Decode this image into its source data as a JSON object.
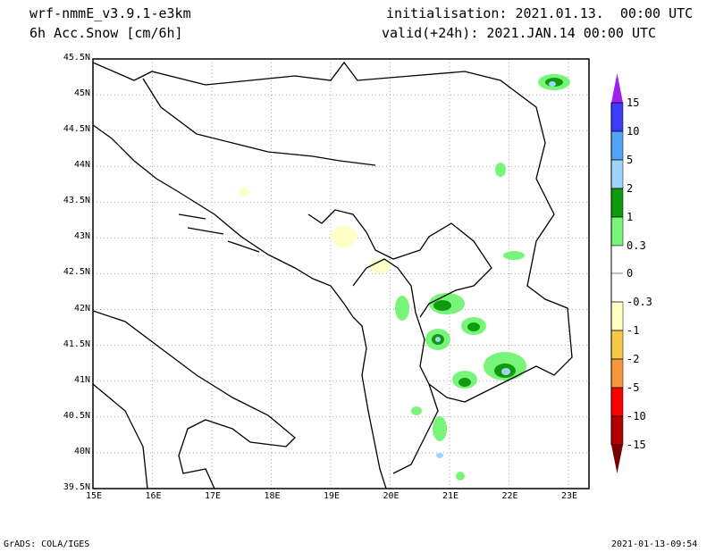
{
  "header": {
    "model": "wrf-nmmE_v3.9.1-e3km",
    "field": "6h Acc.Snow [cm/6h]",
    "init": "initialisation: 2021.01.13.  00:00 UTC",
    "valid": "valid(+24h): 2021.JAN.14 00:00 UTC"
  },
  "footer": {
    "left": "GrADS: COLA/IGES",
    "right": "2021-01-13-09:54"
  },
  "lat_ticks": [
    "45.5N",
    "45N",
    "44.5N",
    "44N",
    "43.5N",
    "43N",
    "42.5N",
    "42N",
    "41.5N",
    "41N",
    "40.5N",
    "40N",
    "39.5N"
  ],
  "lon_ticks": [
    "15E",
    "16E",
    "17E",
    "18E",
    "19E",
    "20E",
    "21E",
    "22E",
    "23E"
  ],
  "colorbar": {
    "labels": [
      "15",
      "10",
      "5",
      "2",
      "1",
      "0.3",
      "0",
      "-0.3",
      "-1",
      "-2",
      "-5",
      "-10",
      "-15"
    ],
    "colors": {
      "top": "#a020f0",
      "c10_15": "#3c3cff",
      "c5_10": "#50a5f5",
      "c2_5": "#a0d2fa",
      "c1_2": "#0f9b0f",
      "c03_1": "#78f578",
      "neutral": "#ffffff",
      "m03_1": "#ffffc8",
      "m1_2": "#f5c846",
      "m2_5": "#f5963c",
      "m5_10": "#ff0000",
      "m10_15": "#b40000",
      "bottom": "#780000"
    }
  }
}
